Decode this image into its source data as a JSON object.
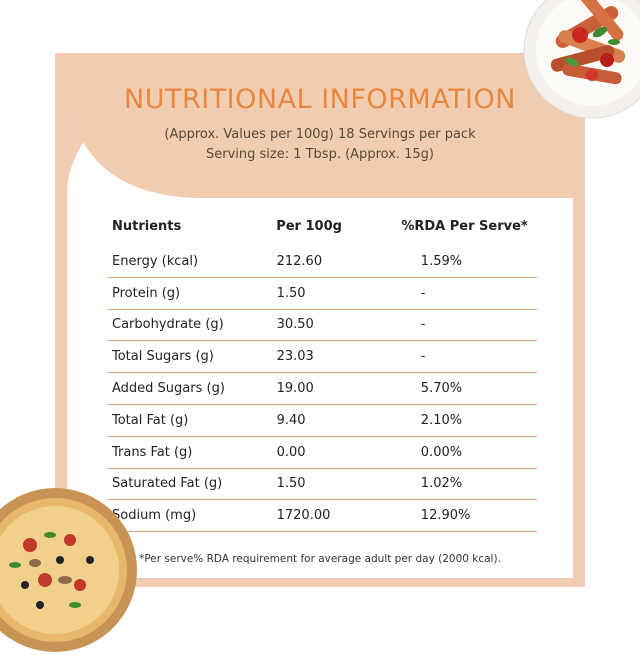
{
  "title": "NUTRITIONAL INFORMATION",
  "subtitle_line1": "(Approx. Values per 100g) 18 Servings per pack",
  "subtitle_line2": "Serving size: 1 Tbsp. (Approx. 15g)",
  "table": {
    "headers": [
      "Nutrients",
      "Per 100g",
      "%RDA Per Serve*"
    ],
    "rows": [
      {
        "nutrient": "Energy (kcal)",
        "per100g": "212.60",
        "rda": "1.59%"
      },
      {
        "nutrient": "Protein (g)",
        "per100g": "1.50",
        "rda": "-"
      },
      {
        "nutrient": "Carbohydrate (g)",
        "per100g": "30.50",
        "rda": "-"
      },
      {
        "nutrient": "Total Sugars (g)",
        "per100g": "23.03",
        "rda": "-"
      },
      {
        "nutrient": "Added Sugars (g)",
        "per100g": "19.00",
        "rda": "5.70%"
      },
      {
        "nutrient": "Total Fat (g)",
        "per100g": "9.40",
        "rda": "2.10%"
      },
      {
        "nutrient": "Trans Fat (g)",
        "per100g": "0.00",
        "rda": "0.00%"
      },
      {
        "nutrient": "Saturated Fat (g)",
        "per100g": "1.50",
        "rda": "1.02%"
      },
      {
        "nutrient": "Sodium (mg)",
        "per100g": "1720.00",
        "rda": "12.90%"
      }
    ]
  },
  "footnote": "*Per serve% RDA requirement for average adult per day (2000 kcal).",
  "colors": {
    "accent": "#e8873d",
    "peach": "#f0ccb0",
    "rule": "#e5a77a"
  },
  "images": [
    "pasta-plate-image",
    "pizza-image"
  ]
}
